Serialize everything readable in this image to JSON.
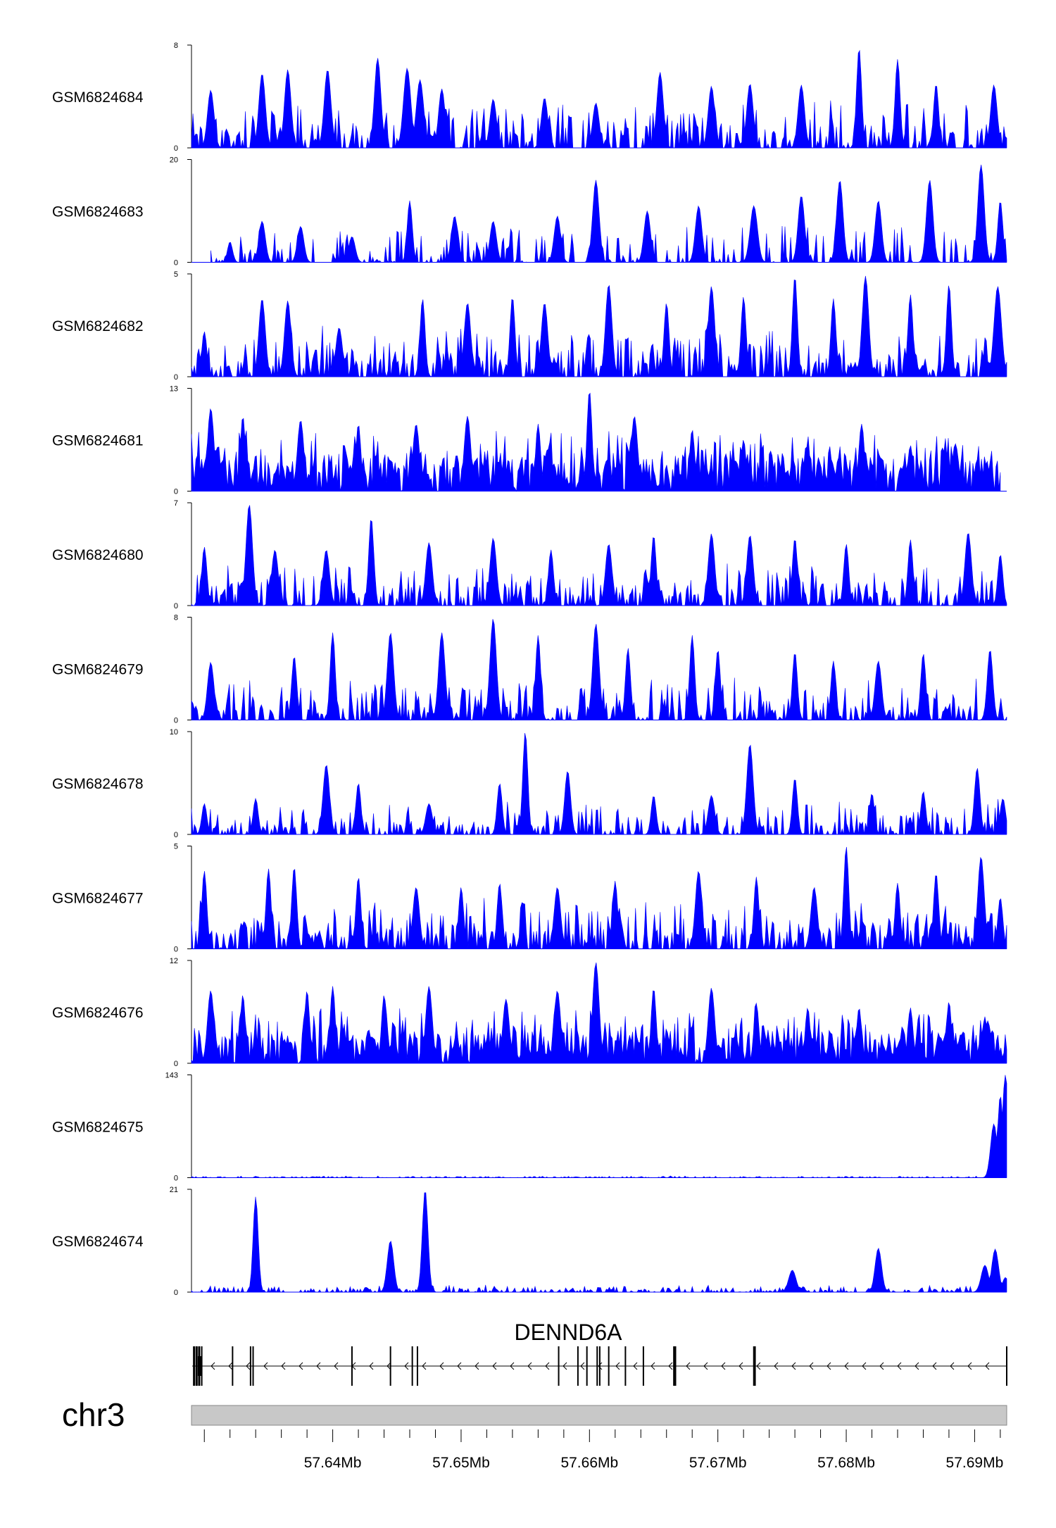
{
  "chart_data": {
    "type": "area",
    "title": "",
    "genome": {
      "chromosome": "chr3",
      "gene": "DENND6A",
      "strand": "-",
      "x_range": [
        57.629,
        57.6925
      ],
      "x_unit": "Mb",
      "x_ticks": [
        "57.64Mb",
        "57.65Mb",
        "57.66Mb",
        "57.67Mb",
        "57.68Mb",
        "57.69Mb"
      ],
      "x_tick_values": [
        57.64,
        57.65,
        57.66,
        57.67,
        57.68,
        57.69
      ],
      "exons": [
        57.6292,
        57.6294,
        57.6296,
        57.6298,
        57.6322,
        57.6336,
        57.6338,
        57.6415,
        57.6445,
        57.6462,
        57.6466,
        57.6576,
        57.6591,
        57.6598,
        57.6606,
        57.6608,
        57.6615,
        57.6628,
        57.6642,
        57.6666,
        57.6667,
        57.6728,
        57.6729,
        57.6925
      ]
    },
    "color": "#0000ff",
    "series": [
      {
        "name": "GSM6824684",
        "ymax": 8,
        "ymin_label": "0",
        "ymax_label": "8",
        "peaks": [
          [
            57.6305,
            4.5
          ],
          [
            57.6345,
            5.8
          ],
          [
            57.6365,
            6.1
          ],
          [
            57.6396,
            6.1
          ],
          [
            57.6435,
            7.0
          ],
          [
            57.6458,
            6.2
          ],
          [
            57.6468,
            5.3
          ],
          [
            57.6485,
            4.6
          ],
          [
            57.6525,
            3.8
          ],
          [
            57.6565,
            3.9
          ],
          [
            57.6605,
            3.5
          ],
          [
            57.6655,
            5.9
          ],
          [
            57.6695,
            4.8
          ],
          [
            57.6725,
            5.0
          ],
          [
            57.6765,
            4.9
          ],
          [
            57.681,
            7.8
          ],
          [
            57.684,
            6.9
          ],
          [
            57.687,
            5.0
          ],
          [
            57.6915,
            4.9
          ]
        ],
        "base": 1.2,
        "noise": 2.6,
        "density": 0.55,
        "seed": 11
      },
      {
        "name": "GSM6824683",
        "ymax": 20,
        "ymin_label": "0",
        "ymax_label": "20",
        "start": 57.6305,
        "peaks": [
          [
            57.632,
            4.0
          ],
          [
            57.6345,
            8.0
          ],
          [
            57.6375,
            7.0
          ],
          [
            57.6415,
            5.0
          ],
          [
            57.646,
            12.0
          ],
          [
            57.6495,
            9.0
          ],
          [
            57.6525,
            8.0
          ],
          [
            57.6575,
            9.0
          ],
          [
            57.6605,
            16.0
          ],
          [
            57.6645,
            10.0
          ],
          [
            57.6685,
            11.0
          ],
          [
            57.6728,
            11.0
          ],
          [
            57.6765,
            13.0
          ],
          [
            57.6795,
            16.0
          ],
          [
            57.6825,
            12.0
          ],
          [
            57.6865,
            16.0
          ],
          [
            57.6905,
            19.0
          ],
          [
            57.692,
            12.0
          ]
        ],
        "base": 0.8,
        "noise": 7.0,
        "density": 0.38,
        "seed": 23
      },
      {
        "name": "GSM6824682",
        "ymax": 5,
        "ymin_label": "0",
        "ymax_label": "5",
        "peaks": [
          [
            57.63,
            2.2
          ],
          [
            57.6345,
            3.8
          ],
          [
            57.6365,
            3.7
          ],
          [
            57.6405,
            2.4
          ],
          [
            57.647,
            3.8
          ],
          [
            57.6505,
            3.6
          ],
          [
            57.654,
            3.9
          ],
          [
            57.6565,
            3.6
          ],
          [
            57.6615,
            4.5
          ],
          [
            57.666,
            3.6
          ],
          [
            57.6695,
            4.4
          ],
          [
            57.672,
            3.9
          ],
          [
            57.676,
            4.9
          ],
          [
            57.679,
            3.8
          ],
          [
            57.6815,
            4.9
          ],
          [
            57.685,
            4.0
          ],
          [
            57.688,
            4.5
          ],
          [
            57.6918,
            4.4
          ]
        ],
        "base": 0.7,
        "noise": 1.9,
        "density": 0.7,
        "seed": 37
      },
      {
        "name": "GSM6824681",
        "ymax": 13,
        "ymin_label": "0",
        "ymax_label": "13",
        "end": 57.692,
        "peaks": [
          [
            57.6305,
            10.5
          ],
          [
            57.633,
            9.5
          ],
          [
            57.6375,
            9.0
          ],
          [
            57.642,
            8.5
          ],
          [
            57.6465,
            8.5
          ],
          [
            57.6505,
            9.5
          ],
          [
            57.656,
            8.5
          ],
          [
            57.66,
            12.8
          ],
          [
            57.6635,
            9.5
          ],
          [
            57.668,
            7.8
          ],
          [
            57.672,
            6.5
          ],
          [
            57.677,
            6.0
          ],
          [
            57.6812,
            8.5
          ],
          [
            57.685,
            5.8
          ],
          [
            57.6885,
            6.0
          ],
          [
            57.691,
            3.0
          ]
        ],
        "base": 4.5,
        "noise": 3.5,
        "density": 0.95,
        "seed": 41
      },
      {
        "name": "GSM6824680",
        "ymax": 7,
        "ymin_label": "0",
        "ymax_label": "7",
        "peaks": [
          [
            57.63,
            4.0
          ],
          [
            57.6335,
            6.9
          ],
          [
            57.6355,
            3.8
          ],
          [
            57.6395,
            3.8
          ],
          [
            57.643,
            6.0
          ],
          [
            57.6475,
            4.3
          ],
          [
            57.6525,
            4.6
          ],
          [
            57.657,
            3.8
          ],
          [
            57.6615,
            4.2
          ],
          [
            57.665,
            4.8
          ],
          [
            57.6695,
            4.9
          ],
          [
            57.6725,
            4.8
          ],
          [
            57.676,
            4.6
          ],
          [
            57.68,
            4.2
          ],
          [
            57.685,
            4.5
          ],
          [
            57.6895,
            5.0
          ],
          [
            57.692,
            3.5
          ]
        ],
        "base": 0.8,
        "noise": 2.3,
        "density": 0.6,
        "seed": 53
      },
      {
        "name": "GSM6824679",
        "ymax": 8,
        "ymin_label": "0",
        "ymax_label": "8",
        "peaks": [
          [
            57.6305,
            4.5
          ],
          [
            57.637,
            5.0
          ],
          [
            57.64,
            6.8
          ],
          [
            57.6445,
            6.8
          ],
          [
            57.6485,
            6.8
          ],
          [
            57.6525,
            7.9
          ],
          [
            57.656,
            6.6
          ],
          [
            57.6605,
            7.5
          ],
          [
            57.663,
            5.6
          ],
          [
            57.668,
            6.6
          ],
          [
            57.67,
            5.5
          ],
          [
            57.676,
            5.3
          ],
          [
            57.679,
            4.6
          ],
          [
            57.6825,
            4.6
          ],
          [
            57.686,
            5.2
          ],
          [
            57.6912,
            5.5
          ]
        ],
        "base": 0.9,
        "noise": 2.6,
        "density": 0.6,
        "seed": 67
      },
      {
        "name": "GSM6824678",
        "ymax": 10,
        "ymin_label": "0",
        "ymax_label": "10",
        "peaks": [
          [
            57.63,
            3.0
          ],
          [
            57.634,
            3.5
          ],
          [
            57.6395,
            6.8
          ],
          [
            57.642,
            5.0
          ],
          [
            57.6475,
            3.0
          ],
          [
            57.653,
            5.0
          ],
          [
            57.655,
            10.0
          ],
          [
            57.6583,
            6.2
          ],
          [
            57.665,
            3.8
          ],
          [
            57.6695,
            3.8
          ],
          [
            57.6725,
            8.8
          ],
          [
            57.676,
            5.5
          ],
          [
            57.682,
            4.0
          ],
          [
            57.686,
            4.2
          ],
          [
            57.6902,
            6.5
          ],
          [
            57.6922,
            3.5
          ]
        ],
        "base": 0.9,
        "noise": 2.6,
        "density": 0.55,
        "seed": 79
      },
      {
        "name": "GSM6824677",
        "ymax": 5,
        "ymin_label": "0",
        "ymax_label": "5",
        "peaks": [
          [
            57.63,
            3.8
          ],
          [
            57.635,
            3.9
          ],
          [
            57.637,
            4.0
          ],
          [
            57.642,
            3.5
          ],
          [
            57.6465,
            3.0
          ],
          [
            57.65,
            3.0
          ],
          [
            57.653,
            3.2
          ],
          [
            57.6575,
            3.0
          ],
          [
            57.662,
            3.3
          ],
          [
            57.6685,
            3.8
          ],
          [
            57.673,
            3.5
          ],
          [
            57.6775,
            3.0
          ],
          [
            57.68,
            5.0
          ],
          [
            57.684,
            3.2
          ],
          [
            57.687,
            3.7
          ],
          [
            57.6905,
            4.5
          ],
          [
            57.692,
            2.5
          ]
        ],
        "base": 0.8,
        "noise": 1.8,
        "density": 0.7,
        "seed": 83
      },
      {
        "name": "GSM6824676",
        "ymax": 12,
        "ymin_label": "0",
        "ymax_label": "12",
        "peaks": [
          [
            57.6305,
            8.5
          ],
          [
            57.633,
            8.0
          ],
          [
            57.638,
            8.5
          ],
          [
            57.64,
            9.0
          ],
          [
            57.644,
            8.0
          ],
          [
            57.6475,
            9.0
          ],
          [
            57.6535,
            7.5
          ],
          [
            57.6575,
            8.5
          ],
          [
            57.6605,
            11.8
          ],
          [
            57.665,
            8.8
          ],
          [
            57.6695,
            8.8
          ],
          [
            57.673,
            7.0
          ],
          [
            57.677,
            6.5
          ],
          [
            57.681,
            6.5
          ],
          [
            57.685,
            6.5
          ],
          [
            57.688,
            7.2
          ],
          [
            57.691,
            5.0
          ]
        ],
        "base": 3.2,
        "noise": 3.5,
        "density": 0.95,
        "seed": 97
      },
      {
        "name": "GSM6824675",
        "ymax": 143,
        "ymin_label": "0",
        "ymax_label": "143",
        "peaks": [
          [
            57.6915,
            75.0
          ],
          [
            57.692,
            115.0
          ],
          [
            57.6924,
            143.0
          ]
        ],
        "base": 1.5,
        "noise": 1.0,
        "density": 0.5,
        "seed": 101
      },
      {
        "name": "GSM6824674",
        "ymax": 21,
        "ymin_label": "0",
        "ymax_label": "21",
        "peaks": [
          [
            57.634,
            19.5
          ],
          [
            57.6445,
            10.5
          ],
          [
            57.6472,
            21.0
          ],
          [
            57.6758,
            4.5
          ],
          [
            57.6825,
            9.0
          ],
          [
            57.6908,
            5.5
          ],
          [
            57.6916,
            8.8
          ],
          [
            57.6924,
            3.0
          ]
        ],
        "base": 0.5,
        "noise": 1.0,
        "density": 0.5,
        "seed": 113
      }
    ]
  }
}
